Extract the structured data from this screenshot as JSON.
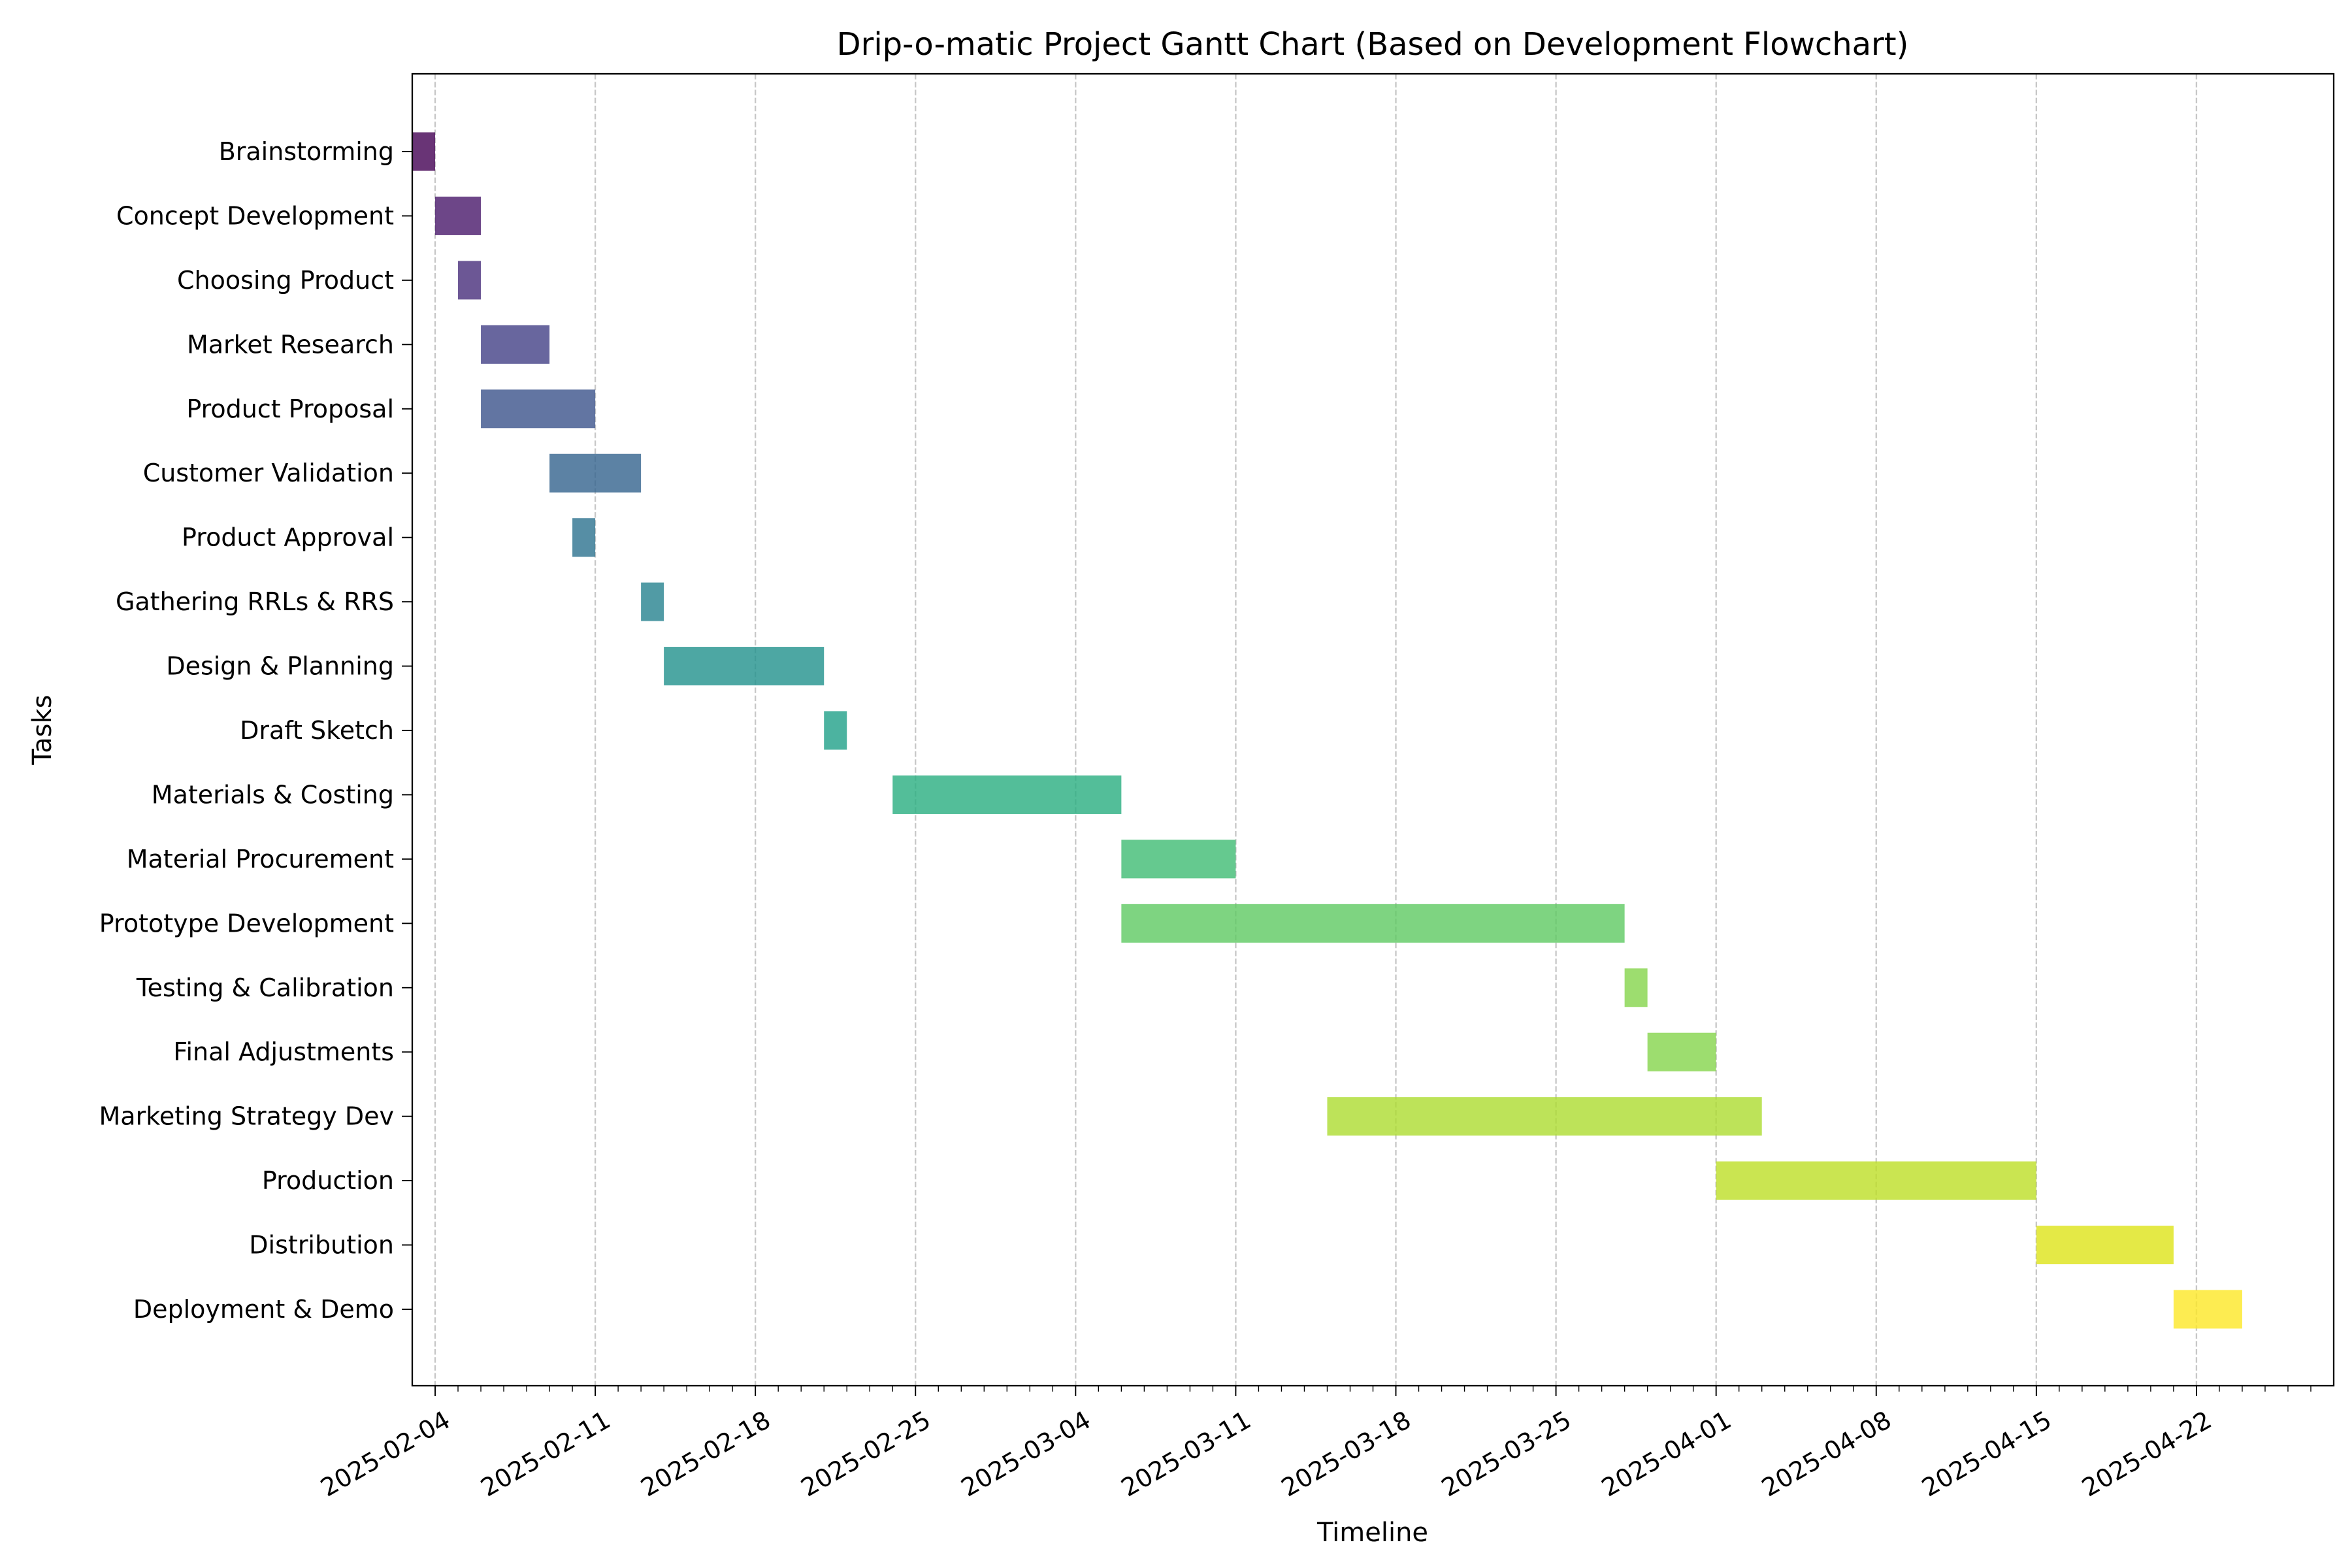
{
  "chart_data": {
    "type": "gantt",
    "title": "Drip-o-matic Project Gantt Chart (Based on Development Flowchart)",
    "xlabel": "Timeline",
    "ylabel": "Tasks",
    "x_axis": "date",
    "xlim": [
      "2025-02-03",
      "2025-04-28"
    ],
    "x_ticks": [
      "2025-02-04",
      "2025-02-11",
      "2025-02-18",
      "2025-02-25",
      "2025-03-04",
      "2025-03-11",
      "2025-03-18",
      "2025-03-25",
      "2025-04-01",
      "2025-04-08",
      "2025-04-15",
      "2025-04-22"
    ],
    "grid": "x-axis dashed",
    "colormap": "viridis",
    "tasks": [
      {
        "name": "Brainstorming",
        "start": "2025-02-03",
        "end": "2025-02-04",
        "color": "#440154"
      },
      {
        "name": "Concept Development",
        "start": "2025-02-04",
        "end": "2025-02-06",
        "color": "#48186a"
      },
      {
        "name": "Choosing Product",
        "start": "2025-02-05",
        "end": "2025-02-06",
        "color": "#472d7b"
      },
      {
        "name": "Market Research",
        "start": "2025-02-06",
        "end": "2025-02-09",
        "color": "#424086"
      },
      {
        "name": "Product Proposal",
        "start": "2025-02-06",
        "end": "2025-02-11",
        "color": "#3b528b"
      },
      {
        "name": "Customer Validation",
        "start": "2025-02-09",
        "end": "2025-02-13",
        "color": "#33638d"
      },
      {
        "name": "Product Approval",
        "start": "2025-02-10",
        "end": "2025-02-11",
        "color": "#2c728e"
      },
      {
        "name": "Gathering RRLs & RRS",
        "start": "2025-02-13",
        "end": "2025-02-14",
        "color": "#26828e"
      },
      {
        "name": "Design & Planning",
        "start": "2025-02-14",
        "end": "2025-02-21",
        "color": "#21918c"
      },
      {
        "name": "Draft Sketch",
        "start": "2025-02-21",
        "end": "2025-02-22",
        "color": "#1fa088"
      },
      {
        "name": "Materials & Costing",
        "start": "2025-02-24",
        "end": "2025-03-06",
        "color": "#28ae80"
      },
      {
        "name": "Material Procurement",
        "start": "2025-03-06",
        "end": "2025-03-11",
        "color": "#3fbc73"
      },
      {
        "name": "Prototype Development",
        "start": "2025-03-06",
        "end": "2025-03-28",
        "color": "#5ec962"
      },
      {
        "name": "Testing & Calibration",
        "start": "2025-03-28",
        "end": "2025-03-29",
        "color": "#84d44b"
      },
      {
        "name": "Final Adjustments",
        "start": "2025-03-29",
        "end": "2025-04-01",
        "color": "#84d44b"
      },
      {
        "name": "Marketing Strategy Dev",
        "start": "2025-03-15",
        "end": "2025-04-03",
        "color": "#addc30"
      },
      {
        "name": "Production",
        "start": "2025-04-01",
        "end": "2025-04-15",
        "color": "#bddf26"
      },
      {
        "name": "Distribution",
        "start": "2025-04-15",
        "end": "2025-04-21",
        "color": "#dde318"
      },
      {
        "name": "Deployment & Demo",
        "start": "2025-04-21",
        "end": "2025-04-24",
        "color": "#fde725"
      }
    ]
  }
}
